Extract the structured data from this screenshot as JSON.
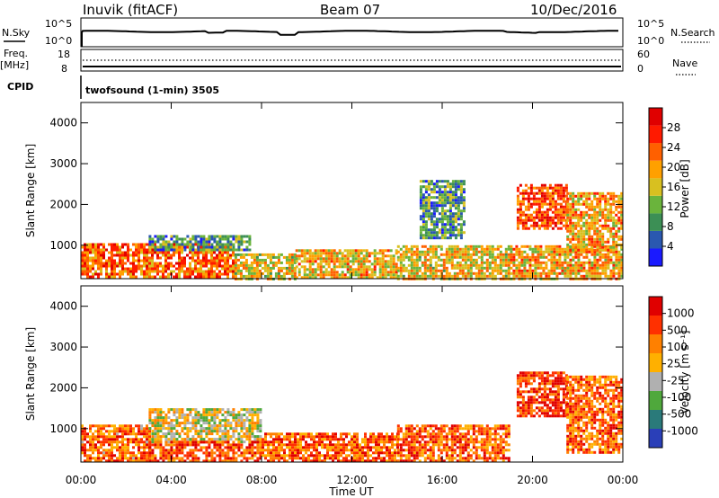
{
  "header": {
    "station": "Inuvik (fitACF)",
    "beam": "Beam 07",
    "date": "10/Dec/2016"
  },
  "noise_panel": {
    "left_label": "N.Sky",
    "left_ticks": [
      "10^5",
      "10^0"
    ],
    "right_ticks": [
      "10^5",
      "10^0"
    ],
    "right_label": "N.Search"
  },
  "freq_panel": {
    "left_label_top": "Freq.",
    "left_label_unit": "[MHz]",
    "left_ticks": [
      "18",
      "8"
    ],
    "right_ticks": [
      "60",
      "0"
    ],
    "right_label": "Nave"
  },
  "cpid": {
    "label": "CPID",
    "value": "twofsound (1-min) 3505"
  },
  "chart_data": [
    {
      "type": "heatmap",
      "quantity": "Power",
      "ylabel": "Slant Range [km]",
      "yticks": [
        "1000",
        "2000",
        "3000",
        "4000"
      ],
      "ylim": [
        180,
        4500
      ],
      "xlim_hours": [
        0,
        24
      ],
      "colorbar_label": "Power [dB]",
      "colorbar_ticks": [
        "4",
        "8",
        "12",
        "16",
        "20",
        "24",
        "28"
      ],
      "colorbar_colors": [
        "#1a1aff",
        "#2a58b0",
        "#3c8f55",
        "#6ab43c",
        "#d8c020",
        "#ffa000",
        "#ff6000",
        "#ff1a00",
        "#e00000"
      ],
      "regions": [
        {
          "t0": 0.0,
          "t1": 6.8,
          "r0": 200,
          "r1": 1050,
          "level": 0.72
        },
        {
          "t0": 3.0,
          "t1": 7.5,
          "r0": 900,
          "r1": 1250,
          "level": 0.28
        },
        {
          "t0": 6.8,
          "t1": 9.5,
          "r0": 200,
          "r1": 800,
          "level": 0.52
        },
        {
          "t0": 9.5,
          "t1": 14.0,
          "r0": 200,
          "r1": 900,
          "level": 0.58
        },
        {
          "t0": 14.0,
          "t1": 19.0,
          "r0": 200,
          "r1": 1000,
          "level": 0.55
        },
        {
          "t0": 15.0,
          "t1": 17.0,
          "r0": 1200,
          "r1": 2600,
          "level": 0.3
        },
        {
          "t0": 19.0,
          "t1": 24.0,
          "r0": 200,
          "r1": 1000,
          "level": 0.6
        },
        {
          "t0": 19.3,
          "t1": 21.5,
          "r0": 1400,
          "r1": 2500,
          "level": 0.78
        },
        {
          "t0": 21.5,
          "t1": 24.0,
          "r0": 900,
          "r1": 2300,
          "level": 0.62
        }
      ]
    },
    {
      "type": "heatmap",
      "quantity": "Velocity",
      "ylabel": "Slant Range [km]",
      "yticks": [
        "1000",
        "2000",
        "3000",
        "4000"
      ],
      "ylim": [
        180,
        4500
      ],
      "xlim_hours": [
        0,
        24
      ],
      "xticks": [
        "00:00",
        "04:00",
        "08:00",
        "12:00",
        "16:00",
        "20:00",
        "00:00"
      ],
      "xlabel": "Time UT",
      "colorbar_label": "Velocity [m s⁻¹]",
      "colorbar_ticks": [
        "1000",
        "500",
        "100",
        "25",
        "-25",
        "-100",
        "-500",
        "-1000"
      ],
      "colorbar_colors": [
        "#2a3fb8",
        "#2a7a7a",
        "#4fa83c",
        "#b0b0b0",
        "#ffb000",
        "#ff8000",
        "#ff3000",
        "#e00000"
      ],
      "regions": [
        {
          "t0": 0.0,
          "t1": 3.0,
          "r0": 200,
          "r1": 1100,
          "level": 0.72
        },
        {
          "t0": 3.0,
          "t1": 8.0,
          "r0": 700,
          "r1": 1500,
          "level": 0.5
        },
        {
          "t0": 3.0,
          "t1": 8.0,
          "r0": 200,
          "r1": 700,
          "level": 0.78
        },
        {
          "t0": 8.0,
          "t1": 14.0,
          "r0": 200,
          "r1": 900,
          "level": 0.76
        },
        {
          "t0": 14.0,
          "t1": 19.0,
          "r0": 200,
          "r1": 1100,
          "level": 0.76
        },
        {
          "t0": 19.3,
          "t1": 21.5,
          "r0": 1300,
          "r1": 2400,
          "level": 0.86
        },
        {
          "t0": 21.5,
          "t1": 24.0,
          "r0": 400,
          "r1": 2300,
          "level": 0.74
        }
      ]
    }
  ]
}
